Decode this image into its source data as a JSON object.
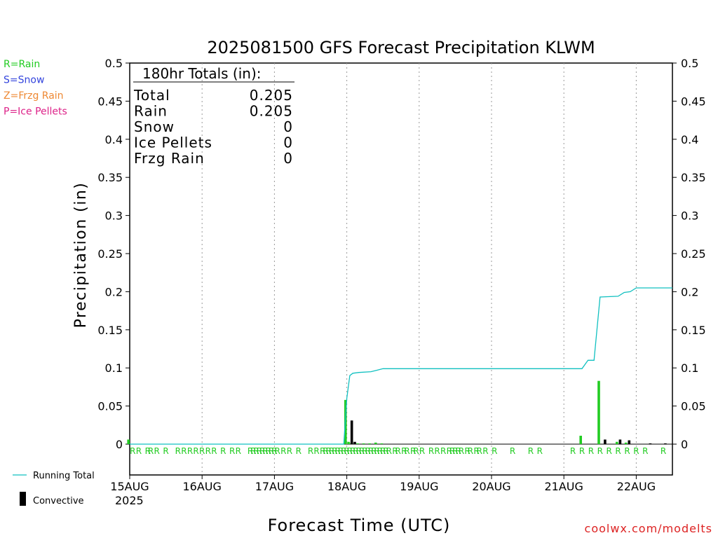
{
  "chart_data": {
    "type": "bar",
    "title": "2025081500 GFS Forecast Precipitation KLWM",
    "xlabel": "Forecast Time (UTC)",
    "ylabel": "Precipitation (in)",
    "ylim": [
      0,
      0.5
    ],
    "yticks": [
      "0",
      "0.05",
      "0.1",
      "0.15",
      "0.2",
      "0.25",
      "0.3",
      "0.35",
      "0.4",
      "0.45",
      "0.5"
    ],
    "xlim_hours": [
      0,
      180
    ],
    "xticks": [
      {
        "hour": 0,
        "label": "15AUG"
      },
      {
        "hour": 24,
        "label": "16AUG"
      },
      {
        "hour": 48,
        "label": "17AUG"
      },
      {
        "hour": 72,
        "label": "18AUG"
      },
      {
        "hour": 96,
        "label": "19AUG"
      },
      {
        "hour": 120,
        "label": "20AUG"
      },
      {
        "hour": 144,
        "label": "21AUG"
      },
      {
        "hour": 168,
        "label": "22AUG"
      }
    ],
    "year_label": "2025",
    "grid": "vertical dotted at day boundaries",
    "legend_types": [
      {
        "label": "R=Rain",
        "color": "#22cc22"
      },
      {
        "label": "S=Snow",
        "color": "#3344dd"
      },
      {
        "label": "Z=Frzg Rain",
        "color": "#ee8833"
      },
      {
        "label": "P=Ice Pellets",
        "color": "#dd2288"
      }
    ],
    "legend_series": [
      {
        "label": "Running Total",
        "color": "#10c0c0",
        "marker": "line"
      },
      {
        "label": "Convective",
        "color": "#000000",
        "marker": "bar"
      }
    ],
    "totals": {
      "header": "180hr Totals (in):",
      "rows": [
        {
          "label": "Total",
          "value": "0.205"
        },
        {
          "label": "Rain",
          "value": "0.205"
        },
        {
          "label": "Snow",
          "value": "0"
        },
        {
          "label": "Ice Pellets",
          "value": "0"
        },
        {
          "label": "Frzg Rain",
          "value": "0"
        }
      ]
    },
    "series": [
      {
        "name": "Rain",
        "color": "#22cc22",
        "points": [
          [
            0,
            0.006
          ],
          [
            72,
            0.058
          ],
          [
            73,
            0.003
          ],
          [
            74,
            0.002
          ],
          [
            75,
            0.001
          ],
          [
            76,
            0.001
          ],
          [
            78,
            0.001
          ],
          [
            80,
            0.001
          ],
          [
            82,
            0.002
          ],
          [
            84,
            0.001
          ],
          [
            150,
            0.011
          ],
          [
            156,
            0.083
          ],
          [
            162,
            0.003
          ],
          [
            165,
            0.002
          ]
        ]
      },
      {
        "name": "Convective",
        "color": "#000000",
        "points": [
          [
            73,
            0.031
          ],
          [
            74,
            0.003
          ],
          [
            157,
            0.006
          ],
          [
            162,
            0.006
          ],
          [
            165,
            0.005
          ],
          [
            172,
            0.001
          ],
          [
            177,
            0.001
          ]
        ]
      },
      {
        "name": "Running Total",
        "color": "#10c0c0",
        "points": [
          [
            0,
            0
          ],
          [
            71,
            0
          ],
          [
            72,
            0.06
          ],
          [
            73,
            0.09
          ],
          [
            74,
            0.093
          ],
          [
            76,
            0.094
          ],
          [
            80,
            0.095
          ],
          [
            82,
            0.097
          ],
          [
            84,
            0.099
          ],
          [
            90,
            0.099
          ],
          [
            150,
            0.099
          ],
          [
            152,
            0.11
          ],
          [
            154,
            0.11
          ],
          [
            156,
            0.193
          ],
          [
            162,
            0.194
          ],
          [
            164,
            0.199
          ],
          [
            166,
            0.2
          ],
          [
            168,
            0.205
          ],
          [
            180,
            0.205
          ]
        ]
      }
    ],
    "ptype_marks": [
      {
        "hour": 1,
        "label": "R"
      },
      {
        "hour": 3,
        "label": "R"
      },
      {
        "hour": 6,
        "label": "R"
      },
      {
        "hour": 7,
        "label": "R"
      },
      {
        "hour": 9,
        "label": "R"
      },
      {
        "hour": 12,
        "label": "R"
      },
      {
        "hour": 16,
        "label": "R"
      },
      {
        "hour": 18,
        "label": "R"
      },
      {
        "hour": 20,
        "label": "R"
      },
      {
        "hour": 22,
        "label": "R"
      },
      {
        "hour": 24,
        "label": "R"
      },
      {
        "hour": 26,
        "label": "R"
      },
      {
        "hour": 28,
        "label": "R"
      },
      {
        "hour": 31,
        "label": "R"
      },
      {
        "hour": 34,
        "label": "R"
      },
      {
        "hour": 36,
        "label": "R"
      },
      {
        "hour": 40,
        "label": "R"
      },
      {
        "hour": 41,
        "label": "R"
      },
      {
        "hour": 42,
        "label": "R"
      },
      {
        "hour": 43,
        "label": "R"
      },
      {
        "hour": 44,
        "label": "R"
      },
      {
        "hour": 45,
        "label": "R"
      },
      {
        "hour": 46,
        "label": "R"
      },
      {
        "hour": 47,
        "label": "R"
      },
      {
        "hour": 48,
        "label": "R"
      },
      {
        "hour": 49,
        "label": "R"
      },
      {
        "hour": 51,
        "label": "R"
      },
      {
        "hour": 53,
        "label": "R"
      },
      {
        "hour": 56,
        "label": "R"
      },
      {
        "hour": 60,
        "label": "R"
      },
      {
        "hour": 62,
        "label": "R"
      },
      {
        "hour": 64,
        "label": "R"
      },
      {
        "hour": 65,
        "label": "R"
      },
      {
        "hour": 66,
        "label": "R"
      },
      {
        "hour": 67,
        "label": "R"
      },
      {
        "hour": 68,
        "label": "R"
      },
      {
        "hour": 69,
        "label": "R"
      },
      {
        "hour": 70,
        "label": "R"
      },
      {
        "hour": 71,
        "label": "R"
      },
      {
        "hour": 72,
        "label": "R"
      },
      {
        "hour": 73,
        "label": "R"
      },
      {
        "hour": 74,
        "label": "R"
      },
      {
        "hour": 75,
        "label": "R"
      },
      {
        "hour": 76,
        "label": "R"
      },
      {
        "hour": 77,
        "label": "R"
      },
      {
        "hour": 78,
        "label": "R"
      },
      {
        "hour": 79,
        "label": "R"
      },
      {
        "hour": 80,
        "label": "R"
      },
      {
        "hour": 81,
        "label": "R"
      },
      {
        "hour": 82,
        "label": "R"
      },
      {
        "hour": 83,
        "label": "R"
      },
      {
        "hour": 84,
        "label": "R"
      },
      {
        "hour": 85,
        "label": "R"
      },
      {
        "hour": 86,
        "label": "R"
      },
      {
        "hour": 88,
        "label": "R"
      },
      {
        "hour": 89,
        "label": "R"
      },
      {
        "hour": 91,
        "label": "R"
      },
      {
        "hour": 92,
        "label": "R"
      },
      {
        "hour": 94,
        "label": "R"
      },
      {
        "hour": 95,
        "label": "R"
      },
      {
        "hour": 97,
        "label": "R"
      },
      {
        "hour": 100,
        "label": "R"
      },
      {
        "hour": 102,
        "label": "R"
      },
      {
        "hour": 104,
        "label": "R"
      },
      {
        "hour": 106,
        "label": "R"
      },
      {
        "hour": 107,
        "label": "R"
      },
      {
        "hour": 108,
        "label": "R"
      },
      {
        "hour": 109,
        "label": "R"
      },
      {
        "hour": 110,
        "label": "R"
      },
      {
        "hour": 112,
        "label": "R"
      },
      {
        "hour": 113,
        "label": "R"
      },
      {
        "hour": 115,
        "label": "R"
      },
      {
        "hour": 116,
        "label": "R"
      },
      {
        "hour": 118,
        "label": "R"
      },
      {
        "hour": 121,
        "label": "R"
      },
      {
        "hour": 127,
        "label": "R"
      },
      {
        "hour": 133,
        "label": "R"
      },
      {
        "hour": 136,
        "label": "R"
      },
      {
        "hour": 147,
        "label": "R"
      },
      {
        "hour": 150,
        "label": "R"
      },
      {
        "hour": 153,
        "label": "R"
      },
      {
        "hour": 156,
        "label": "R"
      },
      {
        "hour": 159,
        "label": "R"
      },
      {
        "hour": 162,
        "label": "R"
      },
      {
        "hour": 165,
        "label": "R"
      },
      {
        "hour": 168,
        "label": "R"
      },
      {
        "hour": 171,
        "label": "R"
      },
      {
        "hour": 177,
        "label": "R"
      }
    ],
    "credit": "coolwx.com/modelts"
  }
}
